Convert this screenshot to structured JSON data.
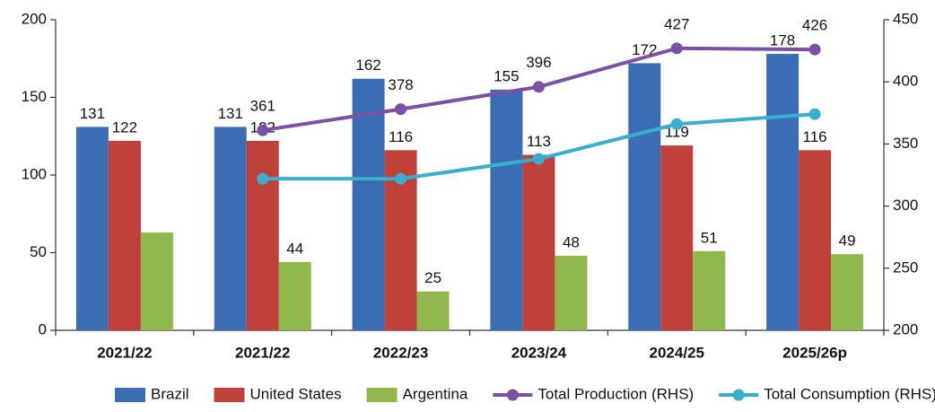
{
  "chart_data": {
    "type": "bar_line",
    "categories": [
      "2021/22",
      "2021/22",
      "2022/23",
      "2023/24",
      "2024/25",
      "2025/26p"
    ],
    "series": [
      {
        "name": "Brazil",
        "type": "bar",
        "color": "#3b6db5",
        "values": [
          131,
          131,
          162,
          155,
          172,
          178
        ],
        "data_labels": true
      },
      {
        "name": "United States",
        "type": "bar",
        "color": "#c0403a",
        "values": [
          122,
          122,
          116,
          113,
          119,
          116
        ],
        "data_labels": true
      },
      {
        "name": "Argentina",
        "type": "bar",
        "color": "#90b84c",
        "values": [
          63,
          44,
          25,
          48,
          51,
          49
        ],
        "data_labels": true,
        "value_labels": [
          null,
          "44",
          "25",
          "48",
          "51",
          "49"
        ]
      },
      {
        "name": "Total Production (RHS)",
        "type": "line",
        "axis": "y2",
        "color": "#7b51a3",
        "values": [
          null,
          361,
          378,
          396,
          427,
          426
        ],
        "data_labels": true
      },
      {
        "name": "Total Consumption (RHS)",
        "type": "line",
        "axis": "y2",
        "color": "#3aaecf",
        "values": [
          null,
          322,
          322,
          338,
          366,
          374
        ],
        "data_labels": false
      }
    ],
    "ylim": [
      0,
      200
    ],
    "yticks": [
      0,
      50,
      100,
      150,
      200
    ],
    "y2lim": [
      200,
      450
    ],
    "y2ticks": [
      200,
      250,
      300,
      350,
      400,
      450
    ],
    "legend": "bottom"
  }
}
